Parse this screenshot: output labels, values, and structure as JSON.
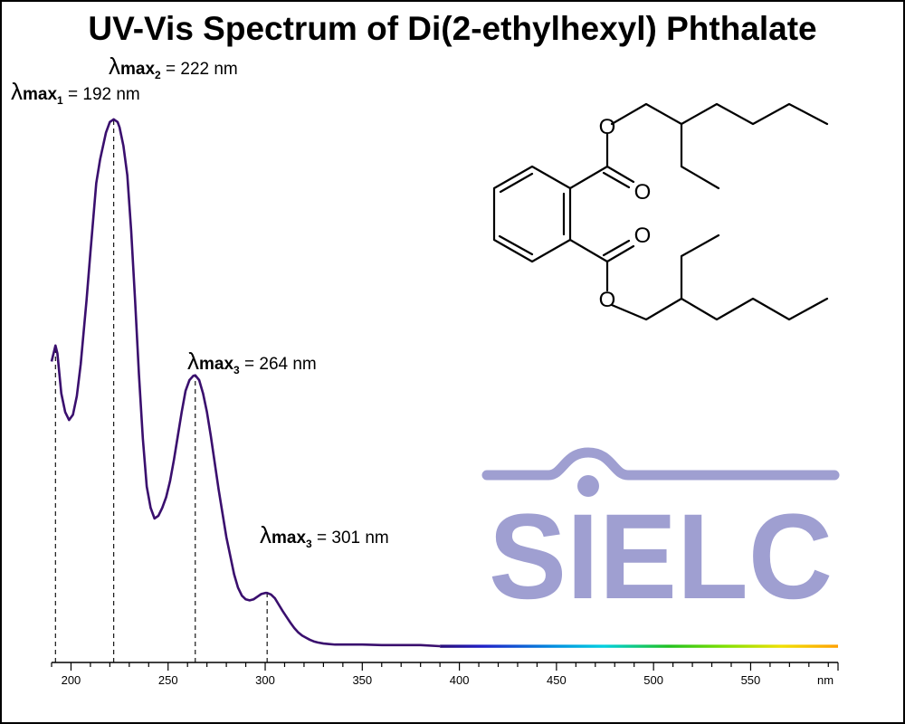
{
  "chart_data": {
    "type": "line",
    "title": "UV-Vis Spectrum of Di(2-ethylhexyl) Phthalate",
    "xlabel": "",
    "ylabel": "",
    "xlim": [
      190,
      595
    ],
    "ylim": [
      0,
      1.0
    ],
    "x_unit": "nm",
    "x_ticks": [
      200,
      250,
      300,
      350,
      400,
      450,
      500,
      550
    ],
    "grid": false,
    "series": [
      {
        "x": [
          190,
          192,
          193,
          195,
          197,
          199,
          201,
          203,
          205,
          208,
          210,
          213,
          215,
          218,
          220,
          222,
          224,
          225,
          227,
          229,
          231,
          233,
          235,
          237,
          239,
          241,
          243,
          245,
          247,
          249,
          251,
          253,
          255,
          257,
          259,
          261,
          263,
          264,
          266,
          268,
          270,
          272,
          274,
          276,
          278,
          280,
          282,
          284,
          286,
          288,
          290,
          292,
          294,
          296,
          298,
          300,
          301,
          303,
          305,
          307,
          309,
          311,
          313,
          315,
          317,
          319,
          321,
          323,
          325,
          327,
          330,
          333,
          336,
          340,
          345,
          350,
          360,
          380,
          390,
          400,
          450,
          500,
          550,
          595
        ],
        "y": [
          0.535,
          0.565,
          0.55,
          0.475,
          0.44,
          0.425,
          0.435,
          0.47,
          0.53,
          0.65,
          0.74,
          0.87,
          0.915,
          0.965,
          0.985,
          0.99,
          0.985,
          0.975,
          0.94,
          0.885,
          0.78,
          0.65,
          0.51,
          0.39,
          0.3,
          0.26,
          0.24,
          0.245,
          0.26,
          0.28,
          0.31,
          0.35,
          0.395,
          0.44,
          0.48,
          0.5,
          0.508,
          0.509,
          0.5,
          0.475,
          0.44,
          0.395,
          0.345,
          0.295,
          0.25,
          0.205,
          0.17,
          0.135,
          0.11,
          0.095,
          0.088,
          0.086,
          0.088,
          0.093,
          0.098,
          0.1,
          0.1,
          0.097,
          0.09,
          0.078,
          0.066,
          0.055,
          0.044,
          0.034,
          0.026,
          0.02,
          0.016,
          0.012,
          0.009,
          0.007,
          0.005,
          0.004,
          0.003,
          0.003,
          0.003,
          0.003,
          0.002,
          0.002,
          0.0,
          0.0,
          0.0,
          0.0,
          0.0,
          0.0
        ]
      }
    ],
    "peaks": [
      {
        "x": 192,
        "y": 0.565,
        "sub": "1",
        "value": "192 nm"
      },
      {
        "x": 222,
        "y": 0.99,
        "sub": "2",
        "value": "222 nm"
      },
      {
        "x": 264,
        "y": 0.509,
        "sub": "3",
        "value": "264 nm"
      },
      {
        "x": 301,
        "y": 0.1,
        "sub": "3",
        "value": "301 nm"
      }
    ],
    "annotation_prefix": "λ",
    "annotation_max": "max",
    "annotation_eq": " = ",
    "colors": {
      "curve": "#3a0f6e",
      "watermark": "#9f9fd1",
      "axis": "#000000",
      "spectrum": [
        "#2a0a6e",
        "#2020c8",
        "#0090e0",
        "#00d0e0",
        "#20c020",
        "#80e000",
        "#f0e000",
        "#ffa000"
      ]
    }
  },
  "watermark": {
    "text": "SIELC"
  },
  "molecule": {
    "atoms": [
      "O",
      "O",
      "O",
      "O"
    ]
  }
}
